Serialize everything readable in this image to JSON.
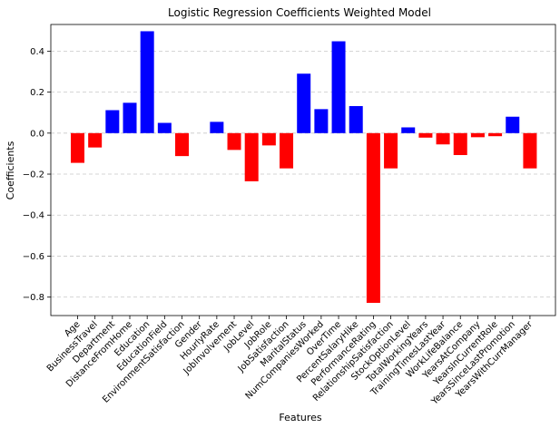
{
  "chart_data": {
    "type": "bar",
    "title": "Logistic Regression Coefficients Weighted Model",
    "xlabel": "Features",
    "ylabel": "Coefficients",
    "ylim": [
      -0.89,
      0.53
    ],
    "yticks": [
      0.4,
      0.2,
      0.0,
      -0.2,
      -0.4,
      -0.6,
      -0.8
    ],
    "ytick_labels": [
      "0.4",
      "0.2",
      "0.0",
      "−0.2",
      "−0.4",
      "−0.6",
      "−0.8"
    ],
    "grid": "horizontal dashed",
    "positive_color": "#0000ff",
    "negative_color": "#ff0000",
    "categories": [
      "Age",
      "BusinessTravel",
      "Department",
      "DistanceFromHome",
      "Education",
      "EducationField",
      "EnvironmentSatisfaction",
      "Gender",
      "HourlyRate",
      "JobInvolvement",
      "JobLevel",
      "JobRole",
      "JobSatisfaction",
      "MaritalStatus",
      "NumCompaniesWorked",
      "OverTime",
      "PercentSalaryHike",
      "PerformanceRating",
      "RelationshipSatisfaction",
      "StockOptionLevel",
      "TotalWorkingYears",
      "TrainingTimesLastYear",
      "WorkLifeBalance",
      "YearsAtCompany",
      "YearsInCurrentRole",
      "YearsSinceLastPromotion",
      "YearsWithCurrManager"
    ],
    "values": [
      -0.145,
      -0.07,
      0.112,
      0.148,
      0.497,
      0.05,
      -0.112,
      0.0,
      0.055,
      -0.082,
      -0.235,
      -0.06,
      -0.172,
      0.29,
      0.117,
      0.448,
      0.132,
      -0.828,
      -0.172,
      0.028,
      -0.022,
      -0.055,
      -0.107,
      -0.02,
      -0.015,
      0.08,
      -0.172
    ]
  }
}
